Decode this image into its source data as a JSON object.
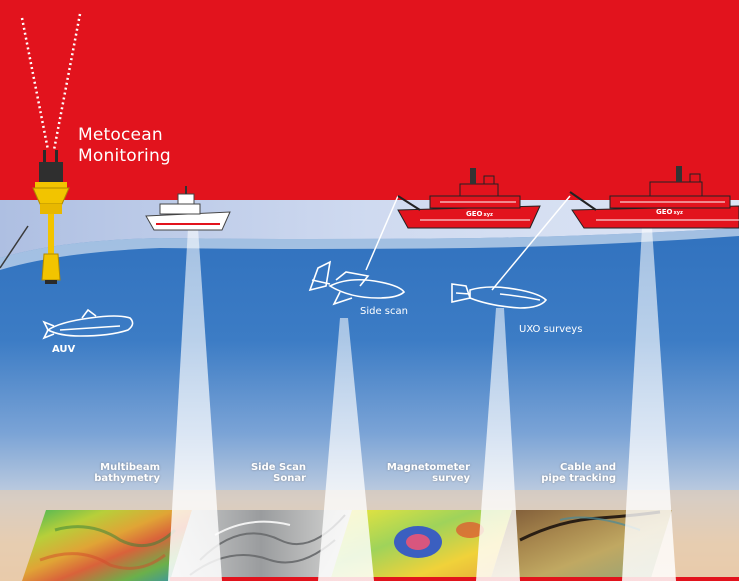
{
  "title": {
    "line1": "Metocean",
    "line2": "Monitoring"
  },
  "labels": {
    "auv": "AUV",
    "side_scan": "Side scan",
    "uxo": "UXO surveys"
  },
  "vessel_marks": {
    "brand": "GEO",
    "suffix": "xyz"
  },
  "panels": [
    {
      "id": "multibeam",
      "line1": "Multibeam",
      "line2": "bathymetry"
    },
    {
      "id": "sidescan",
      "line1": "Side Scan",
      "line2": "Sonar"
    },
    {
      "id": "magnetometer",
      "line1": "Magnetometer",
      "line2": "survey"
    },
    {
      "id": "cable",
      "line1": "Cable and",
      "line2": "pipe tracking"
    }
  ],
  "colors": {
    "sky_red": "#e2131d",
    "sea_surface": "#c9d6ee",
    "sea_mid": "#3f7cc4",
    "seabed_sand": "#e6cdb2",
    "buoy_yellow": "#f2c400",
    "white": "#ffffff"
  }
}
